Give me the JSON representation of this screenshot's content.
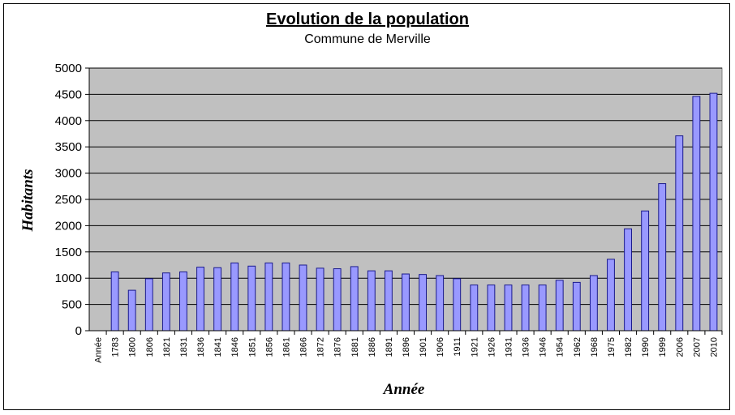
{
  "chart_data": {
    "type": "bar",
    "title": "Evolution de la population",
    "subtitle": "Commune de Merville",
    "xlabel": "Année",
    "ylabel": "Habitants",
    "ylim": [
      0,
      5000
    ],
    "yticks": [
      0,
      500,
      1000,
      1500,
      2000,
      2500,
      3000,
      3500,
      4000,
      4500,
      5000
    ],
    "categories": [
      "Année",
      "1783",
      "1800",
      "1806",
      "1821",
      "1831",
      "1836",
      "1841",
      "1846",
      "1851",
      "1856",
      "1861",
      "1866",
      "1872",
      "1876",
      "1881",
      "1886",
      "1891",
      "1896",
      "1901",
      "1906",
      "1911",
      "1921",
      "1926",
      "1931",
      "1936",
      "1946",
      "1954",
      "1962",
      "1968",
      "1975",
      "1982",
      "1990",
      "1999",
      "2006",
      "2007",
      "2010"
    ],
    "values": [
      null,
      1120,
      770,
      990,
      1100,
      1120,
      1210,
      1200,
      1290,
      1230,
      1290,
      1290,
      1250,
      1190,
      1180,
      1220,
      1140,
      1140,
      1080,
      1070,
      1050,
      990,
      870,
      870,
      870,
      870,
      870,
      960,
      920,
      1050,
      1360,
      1940,
      2280,
      2800,
      3710,
      4460,
      4520
    ],
    "colors": {
      "bar_fill": "#9999ff",
      "bar_stroke": "#1a1a8c",
      "plot_bg": "#c0c0c0",
      "gridline": "#000000"
    },
    "grid": true,
    "legend": "none"
  }
}
